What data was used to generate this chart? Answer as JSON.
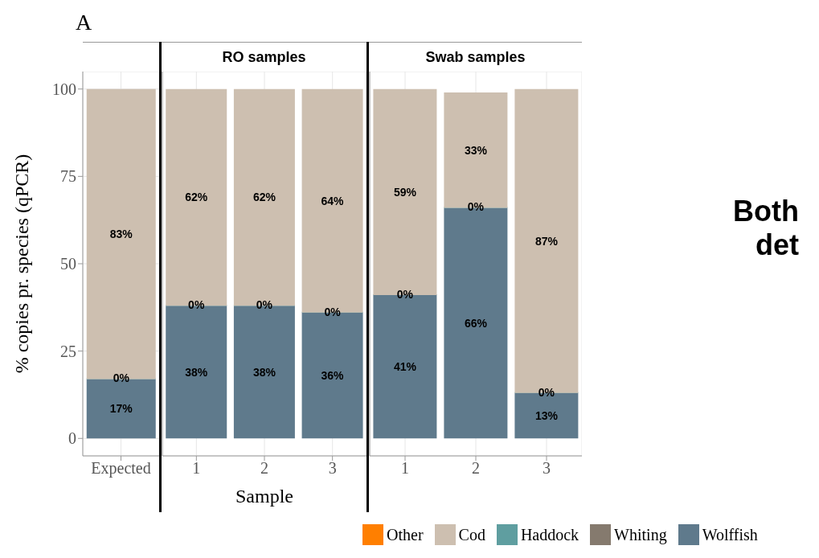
{
  "chart_data": [
    {
      "type": "bar",
      "stacked": true,
      "categories": [
        "Expected"
      ],
      "ylabel": "% copies pr. species (qPCR)",
      "ylim": [
        -5,
        105
      ],
      "yticks": [
        0,
        25,
        50,
        75,
        100
      ],
      "grid": true,
      "annotations": [
        "A"
      ],
      "series": [
        {
          "color": "#5f7a8c",
          "values": [
            17
          ],
          "value_labels": [
            "17%"
          ]
        },
        {
          "color": "#857a6e",
          "values": [
            0
          ]
        },
        {
          "color": "#5f9ea0",
          "values": [
            0
          ],
          "value_labels": [
            "0%"
          ]
        },
        {
          "color": "#cdbfb0",
          "values": [
            83
          ],
          "value_labels": [
            "83%"
          ]
        },
        {
          "color": "#ff7f00",
          "values": [
            0
          ]
        }
      ]
    },
    {
      "type": "bar",
      "stacked": true,
      "title": "RO samples",
      "categories": [
        "1",
        "2",
        "3"
      ],
      "xlabel": "Sample",
      "ylim": [
        -5,
        105
      ],
      "yticks": [
        0,
        25,
        50,
        75,
        100
      ],
      "tick_labels": "x",
      "grid": true,
      "series": [
        {
          "color": "#5f7a8c",
          "values": [
            38,
            38,
            36
          ],
          "value_labels": [
            "38%",
            "38%",
            "36%"
          ]
        },
        {
          "color": "#857a6e",
          "values": [
            0,
            0,
            0
          ]
        },
        {
          "color": "#5f9ea0",
          "values": [
            0,
            0,
            0
          ],
          "value_labels": [
            "0%",
            "0%",
            "0%"
          ]
        },
        {
          "color": "#cdbfb0",
          "values": [
            62,
            62,
            64
          ],
          "value_labels": [
            "62%",
            "62%",
            "64%"
          ]
        },
        {
          "color": "#ff7f00",
          "values": [
            0,
            0,
            0
          ]
        }
      ]
    },
    {
      "type": "bar",
      "stacked": true,
      "title": "Swab samples",
      "categories": [
        "1",
        "2",
        "3"
      ],
      "ylim": [
        -5,
        105
      ],
      "yticks": [
        0,
        25,
        50,
        75,
        100
      ],
      "tick_labels": "x",
      "grid": true,
      "legend": "bottom",
      "annotations": [
        "Both det"
      ],
      "series": [
        {
          "name": "Wolffish",
          "color": "#5f7a8c",
          "values": [
            41,
            66,
            13
          ],
          "value_labels": [
            "41%",
            "66%",
            "13%"
          ]
        },
        {
          "name": "Whiting",
          "color": "#857a6e",
          "values": [
            0,
            0,
            0
          ]
        },
        {
          "name": "Haddock",
          "color": "#5f9ea0",
          "values": [
            0,
            0,
            0
          ],
          "value_labels": [
            "0%",
            "0%",
            "0%"
          ]
        },
        {
          "name": "Cod",
          "color": "#cdbfb0",
          "values": [
            59,
            33,
            87
          ],
          "value_labels": [
            "59%",
            "33%",
            "87%"
          ]
        },
        {
          "name": "Other",
          "color": "#ff7f00",
          "values": [
            0,
            0,
            0
          ]
        }
      ]
    }
  ]
}
